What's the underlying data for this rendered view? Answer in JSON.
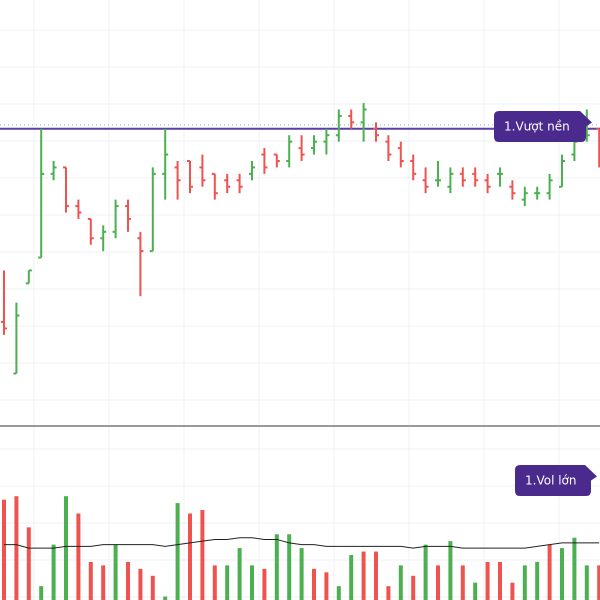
{
  "colors": {
    "up": "#4caf50",
    "down": "#ef5350",
    "resistance": "#5b3ea8",
    "dotted": "#7fbfa6",
    "callout_bg": "#4a2a8c",
    "callout_text": "#ffffff",
    "ma_line": "#222222",
    "separator": "#333333",
    "grid": "#eef0f4"
  },
  "annotations": {
    "price_label": "1.Vượt nền",
    "volume_label": "1.Vol lớn"
  },
  "chart_data": [
    {
      "type": "ohlc-bar",
      "panel": "price",
      "grid": true,
      "resistance_level": 1.0,
      "dotted_level": 1.06,
      "ylim": [
        -3.6,
        3.0
      ],
      "bars": [
        {
          "open": -2.0,
          "high": -1.2,
          "low": -2.2,
          "close": -2.1
        },
        {
          "open": -2.8,
          "high": -1.7,
          "low": -2.8,
          "close": -1.9
        },
        {
          "open": -1.4,
          "high": -1.2,
          "low": -1.4,
          "close": -1.2
        },
        {
          "open": -1.0,
          "high": 1.0,
          "low": -1.0,
          "close": 0.3
        },
        {
          "open": 0.3,
          "high": 0.5,
          "low": 0.2,
          "close": 0.4
        },
        {
          "open": 0.4,
          "high": 0.4,
          "low": -0.3,
          "close": -0.2
        },
        {
          "open": -0.2,
          "high": -0.1,
          "low": -0.4,
          "close": -0.3
        },
        {
          "open": -0.4,
          "high": -0.4,
          "low": -0.8,
          "close": -0.7
        },
        {
          "open": -0.7,
          "high": -0.5,
          "low": -0.9,
          "close": -0.6
        },
        {
          "open": -0.6,
          "high": -0.1,
          "low": -0.7,
          "close": -0.2
        },
        {
          "open": -0.2,
          "high": -0.1,
          "low": -0.6,
          "close": -0.4
        },
        {
          "open": -0.7,
          "high": -0.6,
          "low": -1.6,
          "close": -0.9
        },
        {
          "open": -0.9,
          "high": 0.4,
          "low": -0.9,
          "close": 0.3
        },
        {
          "open": 0.3,
          "high": 1.0,
          "low": -0.1,
          "close": 0.6
        },
        {
          "open": 0.4,
          "high": 0.5,
          "low": -0.1,
          "close": 0.2
        },
        {
          "open": 0.5,
          "high": 0.5,
          "low": 0.0,
          "close": 0.1
        },
        {
          "open": 0.4,
          "high": 0.6,
          "low": 0.1,
          "close": 0.2
        },
        {
          "open": 0.3,
          "high": 0.3,
          "low": -0.1,
          "close": 0.0
        },
        {
          "open": 0.2,
          "high": 0.3,
          "low": 0.0,
          "close": 0.1
        },
        {
          "open": 0.2,
          "high": 0.3,
          "low": 0.0,
          "close": 0.1
        },
        {
          "open": 0.3,
          "high": 0.5,
          "low": 0.2,
          "close": 0.4
        },
        {
          "open": 0.6,
          "high": 0.7,
          "low": 0.3,
          "close": 0.4
        },
        {
          "open": 0.6,
          "high": 0.6,
          "low": 0.4,
          "close": 0.5
        },
        {
          "open": 0.5,
          "high": 0.9,
          "low": 0.4,
          "close": 0.8
        },
        {
          "open": 0.7,
          "high": 0.9,
          "low": 0.5,
          "close": 0.6
        },
        {
          "open": 0.7,
          "high": 0.9,
          "low": 0.6,
          "close": 0.8
        },
        {
          "open": 0.8,
          "high": 1.0,
          "low": 0.6,
          "close": 0.9
        },
        {
          "open": 0.9,
          "high": 1.3,
          "low": 0.8,
          "close": 1.2
        },
        {
          "open": 1.2,
          "high": 1.3,
          "low": 1.0,
          "close": 1.1
        },
        {
          "open": 1.1,
          "high": 1.4,
          "low": 0.8,
          "close": 1.3
        },
        {
          "open": 1.0,
          "high": 1.1,
          "low": 0.8,
          "close": 0.9
        },
        {
          "open": 0.8,
          "high": 0.9,
          "low": 0.5,
          "close": 0.6
        },
        {
          "open": 0.7,
          "high": 0.8,
          "low": 0.4,
          "close": 0.5
        },
        {
          "open": 0.5,
          "high": 0.6,
          "low": 0.2,
          "close": 0.3
        },
        {
          "open": 0.2,
          "high": 0.4,
          "low": 0.0,
          "close": 0.1
        },
        {
          "open": 0.2,
          "high": 0.5,
          "low": 0.1,
          "close": 0.2
        },
        {
          "open": 0.1,
          "high": 0.4,
          "low": 0.0,
          "close": 0.3
        },
        {
          "open": 0.3,
          "high": 0.4,
          "low": 0.1,
          "close": 0.2
        },
        {
          "open": 0.3,
          "high": 0.4,
          "low": 0.1,
          "close": 0.2
        },
        {
          "open": 0.2,
          "high": 0.3,
          "low": 0.0,
          "close": 0.1
        },
        {
          "open": 0.3,
          "high": 0.4,
          "low": 0.1,
          "close": 0.3
        },
        {
          "open": 0.1,
          "high": 0.2,
          "low": -0.1,
          "close": 0.0
        },
        {
          "open": -0.1,
          "high": 0.1,
          "low": -0.2,
          "close": 0.0
        },
        {
          "open": 0.0,
          "high": 0.1,
          "low": -0.1,
          "close": 0.0
        },
        {
          "open": 0.0,
          "high": 0.3,
          "low": -0.1,
          "close": 0.2
        },
        {
          "open": 0.1,
          "high": 0.6,
          "low": 0.1,
          "close": 0.5
        },
        {
          "open": 0.6,
          "high": 0.9,
          "low": 0.5,
          "close": 0.8
        },
        {
          "open": 0.9,
          "high": 1.3,
          "low": 0.8,
          "close": 0.9
        },
        {
          "open": 1.0,
          "high": 1.0,
          "low": 0.4,
          "close": 0.5
        }
      ]
    },
    {
      "type": "bar",
      "panel": "volume",
      "grid": true,
      "ylim": [
        0,
        100
      ],
      "values": [
        58,
        60,
        42,
        8,
        32,
        60,
        50,
        22,
        20,
        32,
        22,
        18,
        14,
        2,
        56,
        50,
        52,
        20,
        20,
        30,
        20,
        18,
        38,
        38,
        30,
        18,
        16,
        8,
        26,
        28,
        28,
        8,
        20,
        14,
        32,
        20,
        34,
        20,
        10,
        22,
        22,
        10,
        20,
        22,
        32,
        30,
        36,
        20,
        20
      ],
      "colors": [
        "down",
        "down",
        "down",
        "up",
        "up",
        "up",
        "down",
        "down",
        "down",
        "up",
        "down",
        "down",
        "down",
        "up",
        "up",
        "down",
        "down",
        "down",
        "up",
        "up",
        "up",
        "down",
        "up",
        "up",
        "up",
        "down",
        "down",
        "up",
        "up",
        "down",
        "down",
        "down",
        "up",
        "down",
        "up",
        "down",
        "up",
        "down",
        "up",
        "down",
        "down",
        "down",
        "up",
        "up",
        "down",
        "up",
        "up",
        "up",
        "down"
      ],
      "ma": [
        32,
        32,
        30,
        30,
        30,
        31,
        31,
        31,
        32,
        32,
        32,
        32,
        32,
        31,
        32,
        33,
        34,
        35,
        35,
        36,
        36,
        35,
        35,
        33,
        32,
        32,
        31,
        31,
        31,
        31,
        31,
        31,
        31,
        30,
        31,
        31,
        31,
        30,
        30,
        30,
        30,
        30,
        30,
        31,
        32,
        33,
        33,
        33,
        33
      ]
    }
  ]
}
